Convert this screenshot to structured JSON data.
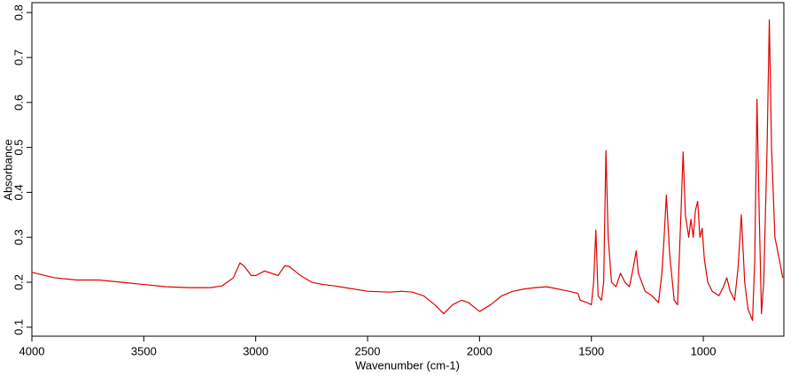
{
  "chart_data": {
    "type": "line",
    "x_label": "Wavenumber (cm-1)",
    "y_label": "Absorbance",
    "x": [
      4000,
      3900,
      3800,
      3700,
      3600,
      3500,
      3400,
      3300,
      3200,
      3150,
      3100,
      3070,
      3050,
      3020,
      3000,
      2960,
      2930,
      2900,
      2870,
      2850,
      2800,
      2750,
      2700,
      2650,
      2600,
      2500,
      2400,
      2350,
      2300,
      2250,
      2200,
      2160,
      2120,
      2080,
      2050,
      2000,
      1950,
      1900,
      1850,
      1800,
      1750,
      1700,
      1650,
      1600,
      1560,
      1550,
      1520,
      1500,
      1490,
      1480,
      1470,
      1455,
      1445,
      1435,
      1425,
      1410,
      1390,
      1370,
      1350,
      1330,
      1310,
      1300,
      1290,
      1260,
      1230,
      1200,
      1185,
      1175,
      1165,
      1150,
      1130,
      1115,
      1100,
      1090,
      1080,
      1065,
      1055,
      1045,
      1035,
      1025,
      1015,
      1005,
      995,
      980,
      960,
      930,
      910,
      895,
      880,
      860,
      845,
      830,
      815,
      800,
      780,
      770,
      760,
      750,
      740,
      730,
      715,
      705,
      695,
      680,
      660,
      645
    ],
    "series": [
      {
        "name": "Absorbance",
        "color": "#e00000",
        "values": [
          0.222,
          0.21,
          0.205,
          0.205,
          0.2,
          0.195,
          0.19,
          0.188,
          0.188,
          0.192,
          0.21,
          0.243,
          0.235,
          0.215,
          0.215,
          0.225,
          0.22,
          0.215,
          0.237,
          0.235,
          0.215,
          0.2,
          0.195,
          0.192,
          0.188,
          0.18,
          0.178,
          0.18,
          0.178,
          0.17,
          0.15,
          0.13,
          0.15,
          0.16,
          0.155,
          0.135,
          0.15,
          0.17,
          0.18,
          0.185,
          0.188,
          0.19,
          0.185,
          0.18,
          0.175,
          0.16,
          0.155,
          0.15,
          0.2,
          0.316,
          0.17,
          0.16,
          0.2,
          0.493,
          0.3,
          0.2,
          0.19,
          0.22,
          0.2,
          0.19,
          0.24,
          0.27,
          0.22,
          0.18,
          0.17,
          0.155,
          0.22,
          0.3,
          0.394,
          0.26,
          0.16,
          0.15,
          0.35,
          0.49,
          0.35,
          0.3,
          0.34,
          0.3,
          0.36,
          0.38,
          0.3,
          0.32,
          0.25,
          0.2,
          0.18,
          0.17,
          0.19,
          0.21,
          0.18,
          0.16,
          0.23,
          0.35,
          0.2,
          0.14,
          0.115,
          0.25,
          0.607,
          0.35,
          0.13,
          0.2,
          0.5,
          0.784,
          0.5,
          0.3,
          0.25,
          0.21
        ]
      }
    ],
    "xlim": [
      4000,
      640
    ],
    "xticks": [
      4000,
      3500,
      3000,
      2500,
      2000,
      1500,
      1000
    ],
    "ylim": [
      0.08,
      0.822
    ],
    "yticks": [
      0.1,
      0.2,
      0.3,
      0.4,
      0.5,
      0.6,
      0.7,
      0.8
    ]
  }
}
